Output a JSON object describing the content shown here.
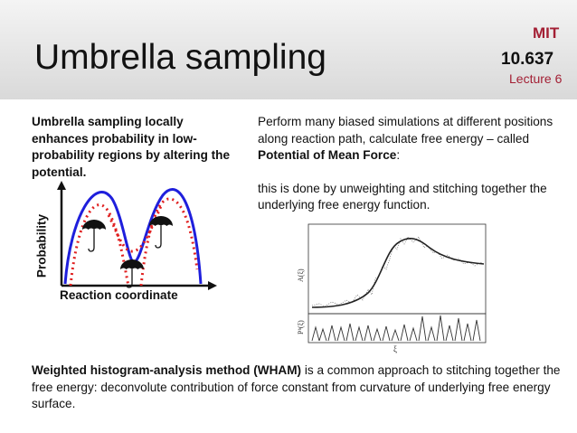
{
  "slide": {
    "title": "Umbrella sampling",
    "institution": "MIT",
    "course": "10.637",
    "lecture": "Lecture 6"
  },
  "left_text": "Umbrella sampling locally enhances probability in  low-probability regions by altering the potential.",
  "right_text": {
    "p1_before": "Perform many biased simulations at different positions along reaction path, calculate free energy – called ",
    "p1_bold": "Potential of Mean Force",
    "p1_after": ":",
    "p2": "this is done by unweighting and stitching together the underlying free energy function."
  },
  "sketch": {
    "ylabel": "Probability",
    "xlabel": "Reaction coordinate",
    "curve_color": "#1f1fdc",
    "bias_color": "#e02020"
  },
  "pmf_figure": {
    "ylabel_top": "A(ξ)",
    "ylabel_bottom": "Pᵇ(ξ)",
    "xlabel": "ξ"
  },
  "bottom_text": {
    "bold": "Weighted histogram-analysis method (WHAM)",
    "rest": " is a common approach to stitching together the free energy: deconvolute contribution of force constant from curvature of underlying free energy surface."
  },
  "colors": {
    "accent_red": "#a31f34"
  }
}
